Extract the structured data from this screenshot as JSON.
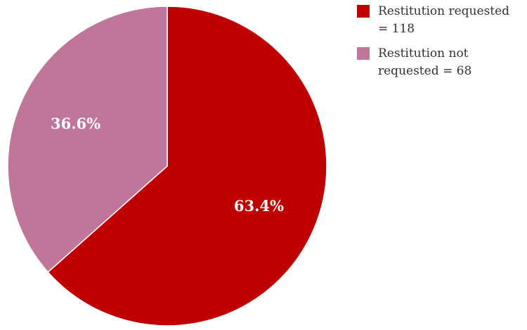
{
  "chart_data": {
    "type": "pie",
    "title": "",
    "slices": [
      {
        "label_lines": [
          "Restitution requested",
          "= 118"
        ],
        "value": 118,
        "percent_label": "63.4%",
        "color": "#c00000"
      },
      {
        "label_lines": [
          "Restitution not",
          "requested = 68"
        ],
        "value": 68,
        "percent_label": "36.6%",
        "color": "#c0759a"
      }
    ],
    "start_angle_deg": 0,
    "direction": "clockwise",
    "legend_position": "top-right"
  }
}
